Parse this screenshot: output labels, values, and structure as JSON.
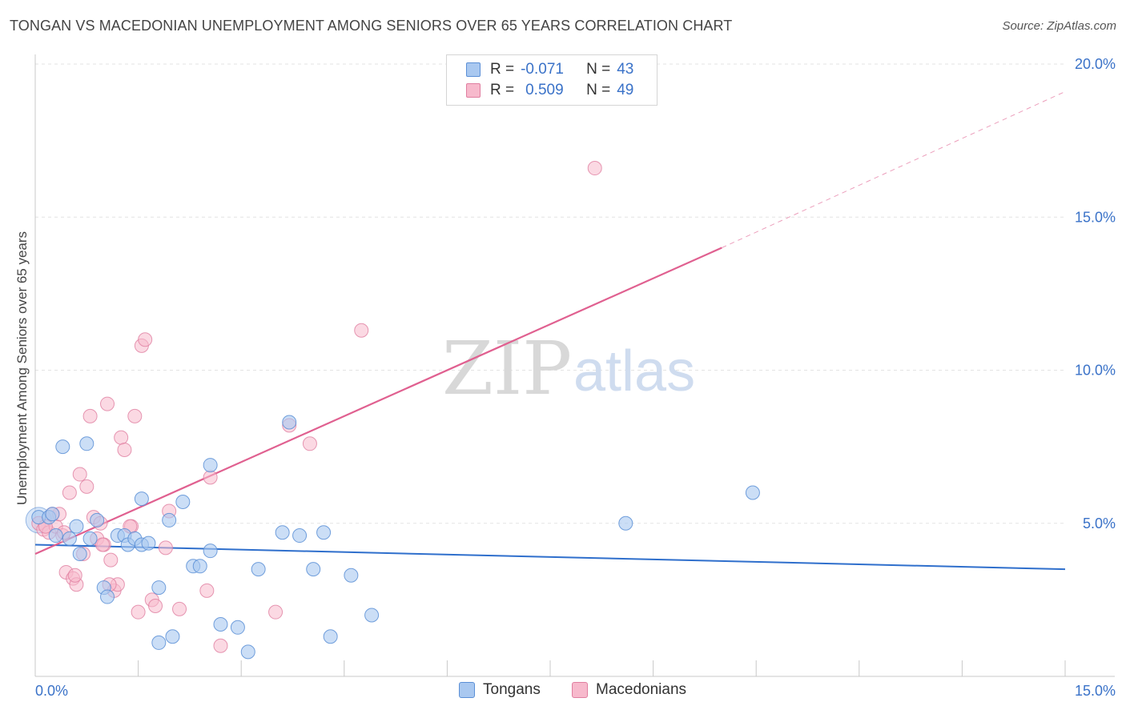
{
  "header": {
    "title": "TONGAN VS MACEDONIAN UNEMPLOYMENT AMONG SENIORS OVER 65 YEARS CORRELATION CHART",
    "source": "Source: ZipAtlas.com"
  },
  "watermark": {
    "zip": "ZIP",
    "atlas": "atlas"
  },
  "colors": {
    "tongan_fill": "#a9c8f0",
    "tongan_stroke": "#5b8fd6",
    "tongan_line": "#2f6fcc",
    "macedonian_fill": "#f7b9cc",
    "macedonian_stroke": "#e07ea0",
    "macedonian_line": "#e06090",
    "tick_text": "#3a72c8",
    "grid": "#e3e3e3"
  },
  "legend": {
    "rows": [
      {
        "r_label": "R =",
        "r_value": "-0.071",
        "n_label": "N =",
        "n_value": "43"
      },
      {
        "r_label": "R =",
        "r_value": "0.509",
        "n_label": "N =",
        "n_value": "49"
      }
    ],
    "series": [
      "Tongans",
      "Macedonians"
    ]
  },
  "chart_data": {
    "type": "scatter",
    "title": "TONGAN VS MACEDONIAN UNEMPLOYMENT AMONG SENIORS OVER 65 YEARS CORRELATION CHART",
    "xlabel": "",
    "ylabel": "Unemployment Among Seniors over 65 years",
    "xlim": [
      0,
      15
    ],
    "ylim": [
      0,
      20
    ],
    "x_tick_labels": [
      "0.0%",
      "15.0%"
    ],
    "y_ticks": [
      5,
      10,
      15,
      20
    ],
    "y_tick_labels": [
      "5.0%",
      "10.0%",
      "15.0%",
      "20.0%"
    ],
    "grid": true,
    "legend_position": "top-center",
    "series": [
      {
        "name": "Tongans",
        "points": [
          [
            0.05,
            5.2
          ],
          [
            0.2,
            5.2
          ],
          [
            0.25,
            5.3
          ],
          [
            0.3,
            4.6
          ],
          [
            0.4,
            7.5
          ],
          [
            0.5,
            4.5
          ],
          [
            0.6,
            4.9
          ],
          [
            0.65,
            4.0
          ],
          [
            0.75,
            7.6
          ],
          [
            0.8,
            4.5
          ],
          [
            0.9,
            5.1
          ],
          [
            1.0,
            2.9
          ],
          [
            1.05,
            2.6
          ],
          [
            1.2,
            4.6
          ],
          [
            1.3,
            4.6
          ],
          [
            1.35,
            4.3
          ],
          [
            1.45,
            4.5
          ],
          [
            1.55,
            4.3
          ],
          [
            1.55,
            5.8
          ],
          [
            1.65,
            4.35
          ],
          [
            1.8,
            2.9
          ],
          [
            1.8,
            1.1
          ],
          [
            1.95,
            5.1
          ],
          [
            2.0,
            1.3
          ],
          [
            2.15,
            5.7
          ],
          [
            2.3,
            3.6
          ],
          [
            2.4,
            3.6
          ],
          [
            2.55,
            6.9
          ],
          [
            2.55,
            4.1
          ],
          [
            2.7,
            1.7
          ],
          [
            2.95,
            1.6
          ],
          [
            3.1,
            0.8
          ],
          [
            3.25,
            3.5
          ],
          [
            3.6,
            4.7
          ],
          [
            3.7,
            8.3
          ],
          [
            3.85,
            4.6
          ],
          [
            4.05,
            3.5
          ],
          [
            4.2,
            4.7
          ],
          [
            4.3,
            1.3
          ],
          [
            4.6,
            3.3
          ],
          [
            4.9,
            2.0
          ],
          [
            8.6,
            5.0
          ],
          [
            10.45,
            6.0
          ]
        ],
        "trend": {
          "x": [
            0,
            15
          ],
          "y": [
            4.3,
            3.5
          ]
        }
      },
      {
        "name": "Macedonians",
        "points": [
          [
            0.05,
            5.0
          ],
          [
            0.12,
            4.8
          ],
          [
            0.2,
            4.7
          ],
          [
            0.3,
            4.9
          ],
          [
            0.35,
            5.3
          ],
          [
            0.4,
            4.6
          ],
          [
            0.45,
            3.4
          ],
          [
            0.5,
            6.0
          ],
          [
            0.55,
            3.2
          ],
          [
            0.6,
            3.0
          ],
          [
            0.65,
            6.6
          ],
          [
            0.7,
            4.0
          ],
          [
            0.75,
            6.2
          ],
          [
            0.8,
            8.5
          ],
          [
            0.85,
            5.2
          ],
          [
            0.9,
            4.5
          ],
          [
            0.95,
            5.0
          ],
          [
            1.0,
            4.3
          ],
          [
            1.05,
            8.9
          ],
          [
            1.1,
            3.8
          ],
          [
            1.15,
            2.8
          ],
          [
            1.2,
            3.0
          ],
          [
            1.25,
            7.8
          ],
          [
            1.3,
            7.4
          ],
          [
            1.4,
            4.9
          ],
          [
            1.45,
            8.5
          ],
          [
            1.5,
            2.1
          ],
          [
            1.55,
            10.8
          ],
          [
            1.6,
            11.0
          ],
          [
            1.7,
            2.5
          ],
          [
            1.75,
            2.3
          ],
          [
            1.9,
            4.2
          ],
          [
            1.95,
            5.4
          ],
          [
            2.1,
            2.2
          ],
          [
            2.5,
            2.8
          ],
          [
            2.55,
            6.5
          ],
          [
            2.7,
            1.0
          ],
          [
            3.5,
            2.1
          ],
          [
            3.7,
            8.2
          ],
          [
            4.0,
            7.6
          ],
          [
            4.75,
            11.3
          ],
          [
            8.15,
            16.6
          ],
          [
            0.15,
            4.9
          ],
          [
            0.25,
            5.3
          ],
          [
            0.42,
            4.7
          ],
          [
            0.58,
            3.3
          ],
          [
            1.08,
            3.0
          ],
          [
            0.98,
            4.3
          ],
          [
            1.38,
            4.9
          ]
        ],
        "trend": {
          "x": [
            0,
            10.0
          ],
          "y": [
            4.0,
            14.0
          ]
        },
        "trend_extension": {
          "x": [
            10.0,
            15
          ],
          "y": [
            14.0,
            19.1
          ]
        }
      }
    ]
  },
  "y_axis_title": "Unemployment Among Seniors over 65 years"
}
